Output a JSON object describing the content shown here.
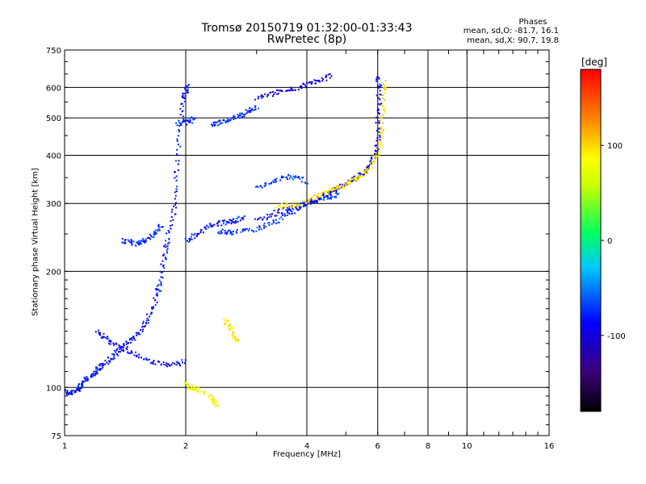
{
  "chart_data": {
    "type": "scatter",
    "title": "Tromsø 20150719 01:32:00-01:33:43",
    "subtitle": "RwPretec (8p)",
    "xlabel": "Frequency [MHz]",
    "ylabel": "Stationary phase Virtual Height [km]",
    "x_scale": "log",
    "y_scale": "log",
    "xlim": [
      1,
      16
    ],
    "ylim": [
      75,
      750
    ],
    "x_ticks": [
      "1",
      "2",
      "4",
      "6",
      "8",
      "10",
      "16"
    ],
    "x_tick_values": [
      1,
      2,
      4,
      6,
      8,
      10,
      16
    ],
    "y_ticks": [
      "75",
      "100",
      "200",
      "300",
      "400",
      "500",
      "600",
      "750"
    ],
    "y_tick_values": [
      75,
      100,
      200,
      300,
      400,
      500,
      600,
      750
    ],
    "grid": true,
    "phase_panel": {
      "title": "Phases",
      "o_line": "mean, sd,O: -81.7, 16.1",
      "x_line": "mean, sd,X:  90.7, 19.8"
    },
    "colorbar": {
      "unit": "[deg]",
      "range": [
        -180,
        180
      ],
      "ticks": [
        "100",
        "0",
        "-100"
      ],
      "tick_values": [
        100,
        0,
        -100
      ]
    },
    "traces": [
      {
        "phase": -85,
        "points": [
          [
            1.0,
            98
          ],
          [
            1.02,
            96
          ],
          [
            1.05,
            97
          ],
          [
            1.08,
            99
          ],
          [
            1.1,
            101
          ],
          [
            1.12,
            104
          ],
          [
            1.15,
            106
          ],
          [
            1.18,
            108
          ],
          [
            1.2,
            111
          ],
          [
            1.24,
            114
          ],
          [
            1.28,
            117
          ],
          [
            1.32,
            120
          ],
          [
            1.36,
            124
          ],
          [
            1.4,
            127
          ],
          [
            1.45,
            132
          ],
          [
            1.5,
            136
          ],
          [
            1.55,
            141
          ],
          [
            1.6,
            148
          ],
          [
            1.65,
            160
          ],
          [
            1.7,
            175
          ],
          [
            1.72,
            185
          ],
          [
            1.75,
            205
          ],
          [
            1.78,
            225
          ],
          [
            1.8,
            240
          ],
          [
            1.85,
            265
          ],
          [
            1.88,
            300
          ],
          [
            1.9,
            350
          ],
          [
            1.92,
            420
          ],
          [
            1.95,
            500
          ],
          [
            1.98,
            560
          ],
          [
            2.0,
            590
          ],
          [
            2.02,
            610
          ]
        ]
      },
      {
        "phase": -90,
        "points": [
          [
            1.2,
            140
          ],
          [
            1.25,
            135
          ],
          [
            1.3,
            132
          ],
          [
            1.35,
            128
          ],
          [
            1.42,
            125
          ],
          [
            1.5,
            122
          ],
          [
            1.6,
            118
          ],
          [
            1.7,
            116
          ],
          [
            1.8,
            114
          ],
          [
            1.9,
            115
          ],
          [
            2.0,
            117
          ]
        ]
      },
      {
        "phase": -75,
        "points": [
          [
            1.4,
            240
          ],
          [
            1.45,
            238
          ],
          [
            1.5,
            236
          ],
          [
            1.55,
            238
          ],
          [
            1.6,
            242
          ],
          [
            1.65,
            248
          ],
          [
            1.7,
            256
          ],
          [
            1.75,
            265
          ]
        ]
      },
      {
        "phase": -80,
        "points": [
          [
            2.0,
            240
          ],
          [
            2.1,
            246
          ],
          [
            2.2,
            255
          ],
          [
            2.3,
            262
          ],
          [
            2.4,
            266
          ],
          [
            2.5,
            268
          ],
          [
            2.6,
            270
          ],
          [
            2.7,
            272
          ],
          [
            2.8,
            275
          ]
        ]
      },
      {
        "phase": -70,
        "points": [
          [
            2.4,
            255
          ],
          [
            2.5,
            252
          ],
          [
            2.6,
            252
          ],
          [
            2.8,
            255
          ],
          [
            3.0,
            258
          ],
          [
            3.2,
            264
          ],
          [
            3.4,
            272
          ],
          [
            3.6,
            282
          ],
          [
            3.8,
            292
          ],
          [
            4.0,
            300
          ],
          [
            4.2,
            305
          ],
          [
            4.4,
            308
          ],
          [
            4.6,
            312
          ],
          [
            4.8,
            318
          ]
        ]
      },
      {
        "phase": -95,
        "points": [
          [
            3.0,
            270
          ],
          [
            3.2,
            278
          ],
          [
            3.4,
            285
          ],
          [
            3.6,
            290
          ],
          [
            3.8,
            295
          ],
          [
            4.0,
            300
          ],
          [
            4.2,
            306
          ],
          [
            4.4,
            314
          ],
          [
            4.6,
            322
          ],
          [
            4.8,
            330
          ],
          [
            5.0,
            338
          ],
          [
            5.2,
            346
          ],
          [
            5.4,
            355
          ],
          [
            5.6,
            368
          ],
          [
            5.8,
            385
          ],
          [
            5.9,
            405
          ],
          [
            6.0,
            430
          ],
          [
            6.0,
            480
          ],
          [
            6.05,
            540
          ],
          [
            6.05,
            600
          ],
          [
            6.0,
            640
          ]
        ]
      },
      {
        "phase": 95,
        "points": [
          [
            3.4,
            295
          ],
          [
            3.6,
            297
          ],
          [
            3.8,
            300
          ],
          [
            4.0,
            305
          ],
          [
            4.2,
            312
          ],
          [
            4.4,
            318
          ],
          [
            4.6,
            324
          ],
          [
            4.8,
            330
          ],
          [
            5.0,
            336
          ],
          [
            5.2,
            343
          ],
          [
            5.4,
            352
          ],
          [
            5.6,
            362
          ],
          [
            5.8,
            378
          ],
          [
            6.0,
            400
          ],
          [
            6.1,
            430
          ],
          [
            6.15,
            470
          ],
          [
            6.2,
            520
          ],
          [
            6.25,
            580
          ],
          [
            6.3,
            630
          ]
        ]
      },
      {
        "phase": -100,
        "points": [
          [
            3.0,
            565
          ],
          [
            3.2,
            575
          ],
          [
            3.4,
            585
          ],
          [
            3.6,
            590
          ],
          [
            3.8,
            597
          ],
          [
            4.0,
            608
          ],
          [
            4.2,
            620
          ],
          [
            4.4,
            632
          ],
          [
            4.6,
            645
          ]
        ]
      },
      {
        "phase": -75,
        "points": [
          [
            2.3,
            480
          ],
          [
            2.4,
            485
          ],
          [
            2.5,
            490
          ],
          [
            2.6,
            497
          ],
          [
            2.7,
            505
          ],
          [
            2.8,
            515
          ],
          [
            2.9,
            525
          ],
          [
            3.0,
            535
          ]
        ]
      },
      {
        "phase": -78,
        "points": [
          [
            1.9,
            480
          ],
          [
            2.0,
            485
          ],
          [
            2.05,
            490
          ],
          [
            2.1,
            497
          ]
        ]
      },
      {
        "phase": -70,
        "points": [
          [
            3.0,
            330
          ],
          [
            3.2,
            338
          ],
          [
            3.4,
            346
          ],
          [
            3.6,
            352
          ],
          [
            3.8,
            348
          ],
          [
            4.0,
            342
          ]
        ]
      },
      {
        "phase": 90,
        "points": [
          [
            2.5,
            150
          ],
          [
            2.55,
            145
          ],
          [
            2.6,
            140
          ],
          [
            2.65,
            135
          ],
          [
            2.7,
            130
          ]
        ]
      },
      {
        "phase": 80,
        "points": [
          [
            2.0,
            102
          ],
          [
            2.05,
            100
          ],
          [
            2.1,
            99
          ],
          [
            2.15,
            98
          ],
          [
            2.3,
            95
          ],
          [
            2.35,
            92
          ],
          [
            2.4,
            90
          ]
        ]
      }
    ]
  }
}
